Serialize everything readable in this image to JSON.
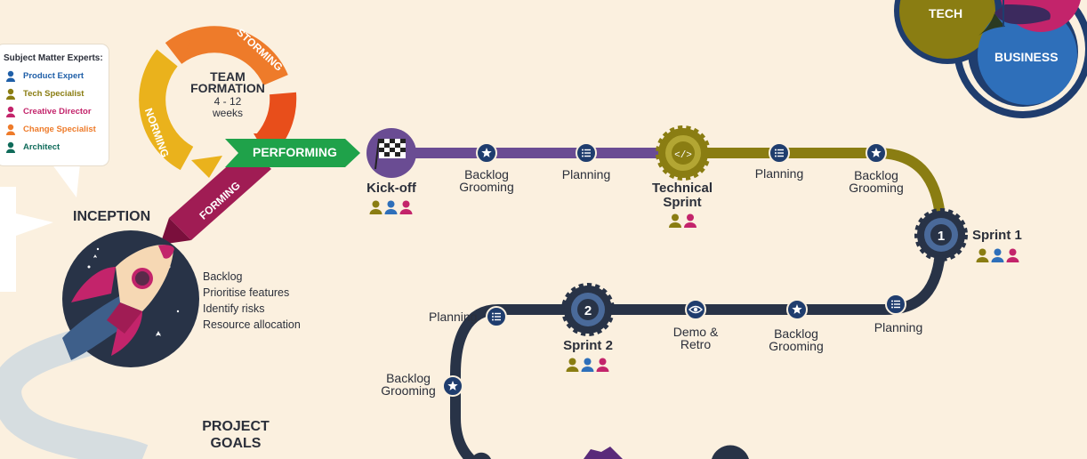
{
  "legend": {
    "title": "Subject Matter Experts:",
    "items": [
      {
        "label": "Product Expert",
        "color": "#1f5fa8"
      },
      {
        "label": "Tech Specialist",
        "color": "#8a7d12"
      },
      {
        "label": "Creative Director",
        "color": "#c3246b"
      },
      {
        "label": "Change Specialist",
        "color": "#ee7b2a"
      },
      {
        "label": "Architect",
        "color": "#0f6b5a"
      }
    ]
  },
  "team_formation": {
    "title_line1": "TEAM",
    "title_line2": "FORMATION",
    "duration": "4 - 12",
    "unit": "weeks",
    "norming": "NORMING",
    "storming": "STORMING",
    "forming": "FORMING",
    "performing": "PERFORMING"
  },
  "inception": {
    "title": "INCEPTION",
    "items": [
      "Backlog",
      "Prioritise features",
      "Identify risks",
      "Resource allocation"
    ]
  },
  "venn": {
    "tech": "TECH",
    "business": "BUSINESS"
  },
  "project_goals": {
    "line1": "PROJECT",
    "line2": "GOALS"
  },
  "milestones": {
    "kickoff": "Kick-off",
    "technical_sprint_line1": "Technical",
    "technical_sprint_line2": "Sprint",
    "sprint1": "Sprint 1",
    "sprint1_number": "1",
    "sprint2": "Sprint 2",
    "sprint2_number": "2"
  },
  "steps": {
    "backlog_grooming_1_l1": "Backlog",
    "backlog_grooming_1_l2": "Grooming",
    "planning_1": "Planning",
    "planning_2": "Planning",
    "backlog_grooming_2_l1": "Backlog",
    "backlog_grooming_2_l2": "Grooming",
    "planning_3": "Planning",
    "backlog_grooming_3_l1": "Backlog",
    "backlog_grooming_3_l2": "Grooming",
    "demo_retro_l1": "Demo &",
    "demo_retro_l2": "Retro",
    "planning_4": "Planning",
    "backlog_grooming_4_l1": "Backlog",
    "backlog_grooming_4_l2": "Grooming"
  },
  "colors": {
    "purple": "#6a4c93",
    "olive": "#8a7d12",
    "navy": "#283347",
    "magenta": "#a01c54",
    "orange": "#ee7b2a",
    "yellow": "#eab21c",
    "green": "#1fa24a",
    "blue": "#2e6fba",
    "bg": "#fbf0df"
  }
}
